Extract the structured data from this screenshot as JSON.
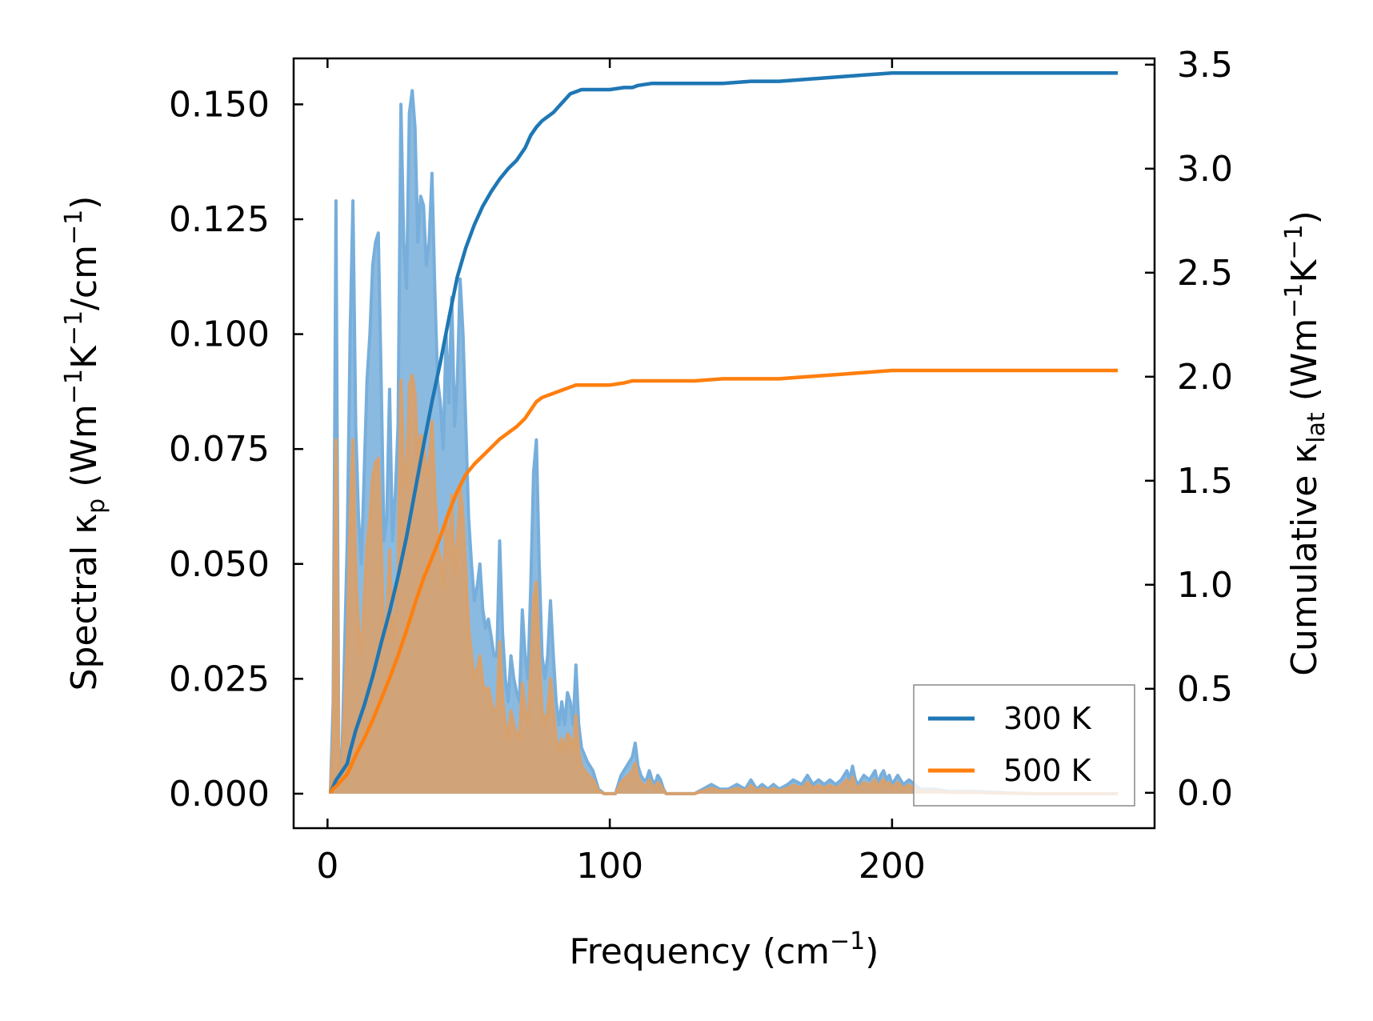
{
  "chart_data": {
    "type": "line",
    "xlabel": "Frequency (cm",
    "xlabel_sup": "−1",
    "xlabel_end": ")",
    "ylabel_left": {
      "prefix": "Spectral κ",
      "sub": "p",
      "mid": " (Wm",
      "sup1": "−1",
      "mid2": "K",
      "sup2": "−1",
      "mid3": "/cm",
      "sup3": "−1",
      "end": ")"
    },
    "ylabel_right": {
      "prefix": "Cumulative κ",
      "sub": "lat",
      "mid": " (Wm",
      "sup1": "−1",
      "mid2": "K",
      "sup2": "−1",
      "end": ")"
    },
    "xlim": [
      -12,
      293
    ],
    "ylim_left": [
      -0.0075,
      0.16
    ],
    "ylim_right": [
      -0.17,
      3.53
    ],
    "xticks": [
      0,
      100,
      200
    ],
    "xtick_labels": [
      "0",
      "100",
      "200"
    ],
    "yticks_left": [
      0,
      0.025,
      0.05,
      0.075,
      0.1,
      0.125,
      0.15
    ],
    "yticks_left_labels": [
      "0.000",
      "0.025",
      "0.050",
      "0.075",
      "0.100",
      "0.125",
      "0.150"
    ],
    "yticks_right": [
      0,
      0.5,
      1,
      1.5,
      2,
      2.5,
      3,
      3.5
    ],
    "yticks_right_labels": [
      "0.0",
      "0.5",
      "1.0",
      "1.5",
      "2.0",
      "2.5",
      "3.0",
      "3.5"
    ],
    "legend": {
      "position": "bottom-right",
      "entries": [
        "300 K",
        "500 K"
      ]
    },
    "colors": {
      "s300": "#1f77b4",
      "s500": "#ff7f0e",
      "fill300": "#77aedb",
      "fill500": "#d7a16e"
    },
    "spectral": [
      {
        "name": "300 K",
        "x": [
          1,
          2,
          3,
          4,
          5,
          6,
          7,
          8,
          9,
          10,
          11,
          12,
          13,
          14,
          15,
          16,
          17,
          18,
          19,
          20,
          21,
          22,
          23,
          24,
          25,
          26,
          27,
          28,
          29,
          30,
          31,
          32,
          33,
          34,
          35,
          36,
          37,
          38,
          39,
          40,
          41,
          42,
          43,
          44,
          45,
          46,
          47,
          48,
          49,
          50,
          51,
          52,
          53,
          54,
          55,
          56,
          57,
          58,
          59,
          60,
          61,
          62,
          63,
          64,
          65,
          66,
          67,
          68,
          69,
          70,
          71,
          72,
          73,
          74,
          75,
          76,
          77,
          78,
          79,
          80,
          81,
          82,
          83,
          84,
          85,
          86,
          87,
          88,
          89,
          90,
          92,
          94,
          96,
          98,
          100,
          102,
          104,
          106,
          108,
          109,
          110,
          111,
          112,
          113,
          114,
          115,
          116,
          117,
          118,
          119,
          120,
          125,
          130,
          133,
          136,
          139,
          142,
          145,
          148,
          150,
          152,
          154,
          156,
          158,
          160,
          163,
          165,
          168,
          170,
          172,
          174,
          176,
          178,
          180,
          182,
          184,
          185,
          186,
          187,
          188,
          190,
          192,
          194,
          195,
          196,
          197,
          198,
          199,
          200,
          202,
          204,
          206,
          208,
          210,
          215,
          220,
          230,
          240,
          250,
          260,
          270,
          280
        ],
        "values": [
          0,
          0.02,
          0.129,
          0.01,
          0.005,
          0.03,
          0.055,
          0.1,
          0.129,
          0.08,
          0.06,
          0.05,
          0.07,
          0.09,
          0.1,
          0.115,
          0.12,
          0.122,
          0.09,
          0.055,
          0.06,
          0.088,
          0.055,
          0.065,
          0.08,
          0.15,
          0.12,
          0.11,
          0.148,
          0.153,
          0.145,
          0.12,
          0.13,
          0.128,
          0.115,
          0.12,
          0.135,
          0.11,
          0.09,
          0.085,
          0.075,
          0.1,
          0.085,
          0.108,
          0.08,
          0.09,
          0.112,
          0.1,
          0.08,
          0.06,
          0.05,
          0.042,
          0.045,
          0.05,
          0.04,
          0.036,
          0.038,
          0.034,
          0.03,
          0.03,
          0.055,
          0.035,
          0.025,
          0.02,
          0.03,
          0.025,
          0.022,
          0.02,
          0.04,
          0.03,
          0.025,
          0.045,
          0.07,
          0.077,
          0.05,
          0.03,
          0.025,
          0.03,
          0.042,
          0.03,
          0.02,
          0.015,
          0.02,
          0.015,
          0.022,
          0.02,
          0.015,
          0.028,
          0.015,
          0.01,
          0.007,
          0.005,
          0.001,
          0,
          0,
          0,
          0.004,
          0.006,
          0.008,
          0.011,
          0.006,
          0.004,
          0.003,
          0.003,
          0.005,
          0.003,
          0.002,
          0.004,
          0.003,
          0.001,
          0,
          0,
          0,
          0.001,
          0.002,
          0.001,
          0.001,
          0.002,
          0.001,
          0.003,
          0.001,
          0.002,
          0.001,
          0.002,
          0.001,
          0.002,
          0.003,
          0.002,
          0.004,
          0.002,
          0.003,
          0.002,
          0.003,
          0.002,
          0.003,
          0.005,
          0.003,
          0.006,
          0.003,
          0.002,
          0.004,
          0.003,
          0.005,
          0.002,
          0.004,
          0.005,
          0.003,
          0.004,
          0.002,
          0.004,
          0.002,
          0.003,
          0.002,
          0.001,
          0.001,
          0.0005,
          0.0005,
          0.0002,
          0,
          0,
          0,
          0
        ]
      },
      {
        "name": "500 K",
        "x": [
          1,
          2,
          3,
          4,
          5,
          6,
          7,
          8,
          9,
          10,
          11,
          12,
          13,
          14,
          15,
          16,
          17,
          18,
          19,
          20,
          21,
          22,
          23,
          24,
          25,
          26,
          27,
          28,
          29,
          30,
          31,
          32,
          33,
          34,
          35,
          36,
          37,
          38,
          39,
          40,
          41,
          42,
          43,
          44,
          45,
          46,
          47,
          48,
          49,
          50,
          51,
          52,
          53,
          54,
          55,
          56,
          57,
          58,
          59,
          60,
          61,
          62,
          63,
          64,
          65,
          66,
          67,
          68,
          69,
          70,
          71,
          72,
          73,
          74,
          75,
          76,
          77,
          78,
          79,
          80,
          81,
          82,
          83,
          84,
          85,
          86,
          87,
          88,
          89,
          90,
          92,
          94,
          96,
          98,
          100,
          102,
          104,
          106,
          108,
          109,
          110,
          111,
          112,
          113,
          114,
          115,
          116,
          117,
          118,
          119,
          120,
          125,
          130,
          133,
          136,
          139,
          142,
          145,
          148,
          150,
          152,
          154,
          156,
          158,
          160,
          163,
          165,
          168,
          170,
          172,
          174,
          176,
          178,
          180,
          182,
          184,
          185,
          186,
          187,
          188,
          190,
          192,
          194,
          195,
          196,
          197,
          198,
          199,
          200,
          202,
          204,
          206,
          208,
          210,
          215,
          220,
          230,
          240,
          250,
          260,
          270,
          280
        ],
        "values": [
          0,
          0.012,
          0.077,
          0.006,
          0.003,
          0.018,
          0.033,
          0.06,
          0.077,
          0.048,
          0.036,
          0.03,
          0.042,
          0.054,
          0.06,
          0.069,
          0.072,
          0.073,
          0.054,
          0.033,
          0.036,
          0.053,
          0.033,
          0.039,
          0.048,
          0.09,
          0.072,
          0.066,
          0.089,
          0.091,
          0.087,
          0.072,
          0.078,
          0.077,
          0.069,
          0.072,
          0.081,
          0.066,
          0.054,
          0.051,
          0.045,
          0.06,
          0.051,
          0.065,
          0.048,
          0.054,
          0.067,
          0.06,
          0.048,
          0.036,
          0.03,
          0.025,
          0.027,
          0.03,
          0.024,
          0.022,
          0.023,
          0.02,
          0.018,
          0.018,
          0.033,
          0.021,
          0.015,
          0.012,
          0.018,
          0.015,
          0.013,
          0.012,
          0.024,
          0.018,
          0.015,
          0.027,
          0.042,
          0.046,
          0.03,
          0.018,
          0.015,
          0.018,
          0.025,
          0.018,
          0.012,
          0.009,
          0.012,
          0.009,
          0.013,
          0.012,
          0.009,
          0.017,
          0.009,
          0.006,
          0.0042,
          0.003,
          0.0006,
          0,
          0,
          0,
          0.0024,
          0.0036,
          0.0048,
          0.0066,
          0.0036,
          0.0024,
          0.0018,
          0.0018,
          0.003,
          0.0018,
          0.0012,
          0.0024,
          0.0018,
          0.0006,
          0,
          0,
          0,
          0.0006,
          0.0012,
          0.0006,
          0.0006,
          0.0012,
          0.0006,
          0.0018,
          0.0006,
          0.0012,
          0.0006,
          0.0012,
          0.0006,
          0.0012,
          0.0018,
          0.0012,
          0.0024,
          0.0012,
          0.0018,
          0.0012,
          0.0018,
          0.0012,
          0.0018,
          0.003,
          0.0018,
          0.0036,
          0.0018,
          0.0012,
          0.0024,
          0.0018,
          0.003,
          0.0012,
          0.0024,
          0.003,
          0.0018,
          0.0024,
          0.0012,
          0.0024,
          0.0012,
          0.0018,
          0.0012,
          0.0006,
          0.0006,
          0.0003,
          0.0003,
          0.0001,
          0,
          0,
          0,
          0
        ]
      }
    ],
    "cumulative": [
      {
        "name": "300 K",
        "x": [
          1,
          2,
          3,
          5,
          7,
          8,
          10,
          13,
          16,
          19,
          22,
          25,
          28,
          31,
          34,
          37,
          40,
          43,
          46,
          49,
          52,
          55,
          58,
          61,
          64,
          67,
          70,
          72,
          74,
          76,
          78,
          80,
          82,
          84,
          86,
          88,
          90,
          95,
          100,
          105,
          108,
          110,
          115,
          120,
          130,
          140,
          150,
          160,
          170,
          180,
          190,
          200,
          210,
          220,
          240,
          260,
          280
        ],
        "values": [
          0,
          0.03,
          0.06,
          0.1,
          0.14,
          0.2,
          0.3,
          0.42,
          0.56,
          0.72,
          0.87,
          1.04,
          1.23,
          1.45,
          1.67,
          1.88,
          2.07,
          2.28,
          2.48,
          2.62,
          2.73,
          2.82,
          2.89,
          2.95,
          3.0,
          3.04,
          3.1,
          3.16,
          3.2,
          3.23,
          3.25,
          3.27,
          3.3,
          3.33,
          3.36,
          3.37,
          3.38,
          3.38,
          3.38,
          3.39,
          3.39,
          3.4,
          3.41,
          3.41,
          3.41,
          3.41,
          3.42,
          3.42,
          3.43,
          3.44,
          3.45,
          3.46,
          3.46,
          3.46,
          3.46,
          3.46,
          3.46
        ]
      },
      {
        "name": "500 K",
        "x": [
          1,
          2,
          3,
          5,
          7,
          8,
          10,
          13,
          16,
          19,
          22,
          25,
          28,
          31,
          34,
          37,
          40,
          43,
          46,
          49,
          52,
          55,
          58,
          61,
          64,
          67,
          70,
          72,
          74,
          76,
          78,
          80,
          82,
          84,
          86,
          88,
          90,
          95,
          100,
          105,
          108,
          110,
          115,
          120,
          130,
          140,
          150,
          160,
          170,
          180,
          190,
          200,
          210,
          220,
          240,
          260,
          280
        ],
        "values": [
          0,
          0.02,
          0.03,
          0.06,
          0.09,
          0.12,
          0.18,
          0.26,
          0.35,
          0.45,
          0.55,
          0.66,
          0.78,
          0.91,
          1.03,
          1.13,
          1.23,
          1.35,
          1.45,
          1.53,
          1.58,
          1.62,
          1.66,
          1.7,
          1.73,
          1.76,
          1.8,
          1.84,
          1.88,
          1.9,
          1.91,
          1.92,
          1.93,
          1.94,
          1.95,
          1.96,
          1.96,
          1.96,
          1.96,
          1.97,
          1.98,
          1.98,
          1.98,
          1.98,
          1.98,
          1.99,
          1.99,
          1.99,
          2.0,
          2.01,
          2.02,
          2.03,
          2.03,
          2.03,
          2.03,
          2.03,
          2.03
        ]
      }
    ]
  }
}
